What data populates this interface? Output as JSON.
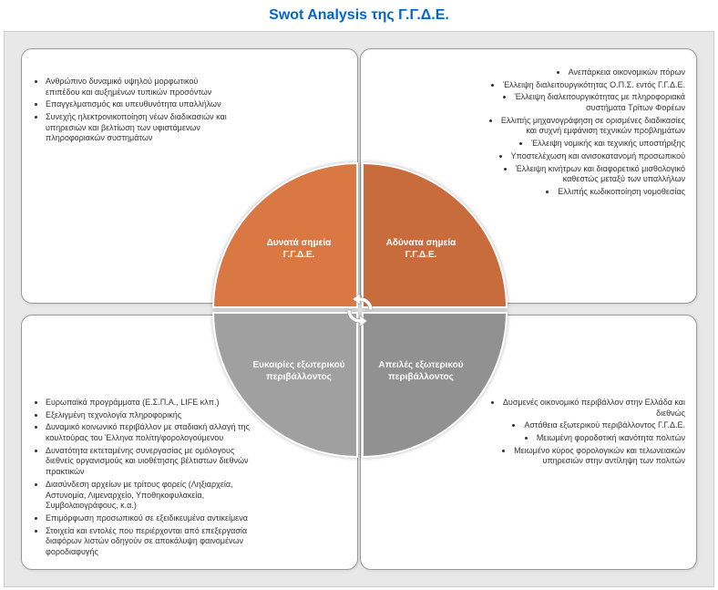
{
  "title": "Swot Analysis της Γ.Γ.Δ.Ε.",
  "colors": {
    "title": "#0066cc",
    "canvas_bg": "#e8e8e8",
    "box_bg": "#ffffff",
    "slice_tl": "#d97842",
    "slice_tr": "#c86b3d",
    "slice_bl": "#a0a0a0",
    "slice_br": "#919191"
  },
  "swot": {
    "strengths": {
      "label": "Δυνατά σημεία Γ.Γ.Δ.Ε.",
      "items": [
        "Ανθρώπινο δυναμικό υψηλού μορφωτικού επιπέδου και αυξημένων τυπικών προσόντων",
        "Επαγγελματισμός και υπευθυνότητα υπαλλήλων",
        "Συνεχής ηλεκτρονικοποίηση νέων διαδικασιών και υπηρεσιών και βελτίωση των υφιστάμενων πληροφοριακών συστημάτων"
      ]
    },
    "weaknesses": {
      "label": "Αδύνατα σημεία Γ.Γ.Δ.Ε.",
      "items": [
        "Ανεπάρκεια οικονομικών πόρων",
        "Έλλειψη διαλειτουργικότητας Ο.Π.Σ. εντός Γ.Γ.Δ.Ε.",
        "Έλλειψη διαλειτουργικότητας με πληροφοριακά συστήματα Τρίτων Φορέων",
        "Ελλιπής μηχανογράφηση σε ορισμένες διαδικασίες και συχνή εμφάνιση τεχνικών προβλημάτων",
        "Έλλειψη νομικής και τεχνικής υποστήριξης",
        "Υποστελέχωση και ανισοκατανομή προσωπικού",
        "Έλλειψη κινήτρων και διαφορετικό μισθολογικό καθεστώς μεταξύ των υπαλλήλων",
        "Ελλιπής κωδικοποίηση νομοθεσίας"
      ]
    },
    "opportunities": {
      "label": "Ευκαιρίες εξωτερικού περιβάλλοντος",
      "items": [
        "Ευρωπαϊκά προγράμματα (Ε.Σ.Π.Α., LIFE κλπ.)",
        "Εξελιγμένη τεχνολογία πληροφορικής",
        "Δυναμικό κοινωνικό περιβάλλον με σταδιακή αλλαγή της κουλτούρας του Έλληνα πολίτη/φορολογούμενου",
        "Δυνατότητα εκτεταμένης συνεργασίας με ομόλογους διεθνείς οργανισμούς και υιοθέτησης βέλτιστων διεθνών πρακτικών",
        "Διασύνδεση αρχείων με τρίτους φορείς (Ληξιαρχεία, Αστυνομία, Λιμεναρχείο, Υποθηκοφυλακεία, Συμβολαιογράφους, κ.α.)",
        "Επιμόρφωση προσωπικού σε εξειδικευμένα αντικείμενα",
        "Στοιχεία και εντολές που περιέρχονται από επεξεργασία διαφόρων λιστών οδηγούν σε αποκάλυψη φαινομένων φοροδιαφυγής"
      ]
    },
    "threats": {
      "label": "Απειλές εξωτερικού περιβάλλοντος",
      "items": [
        "Δυσμενές οικονομικό περιβάλλον στην Ελλάδα και διεθνώς",
        "Αστάθεια εξωτερικού περιβάλλοντος Γ.Γ.Δ.Ε.",
        "Μειωμένη φοροδοτική ικανότητα πολιτών",
        "Μειωμένο κύρος φορολογικών και τελωνειακών υπηρεσιών στην αντίληψη των πολιτών"
      ]
    }
  }
}
